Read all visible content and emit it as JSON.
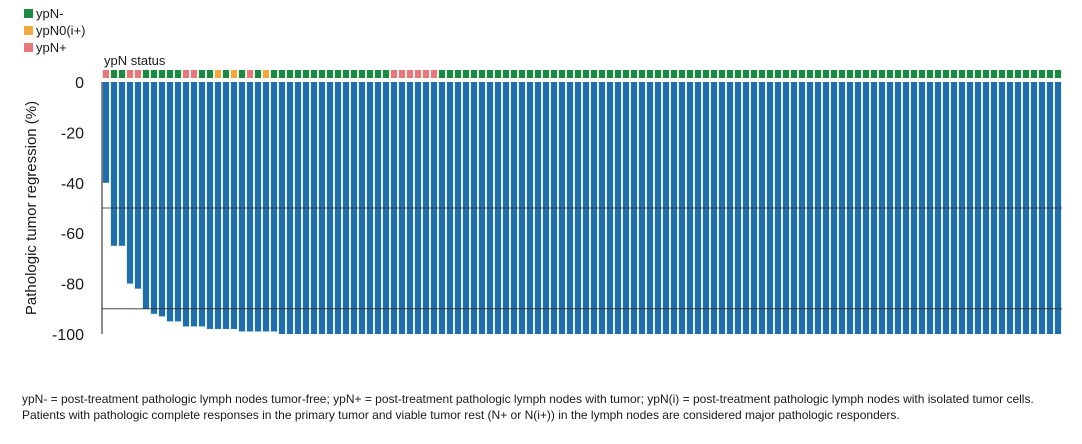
{
  "chart_data": {
    "type": "bar",
    "ylabel": "Pathologic tumor regression (%)",
    "ylim": [
      -100,
      0
    ],
    "yticks": [
      0,
      -20,
      -40,
      -60,
      -80,
      -100
    ],
    "reference_lines": [
      -50,
      -90
    ],
    "legend": {
      "placement": "top-left",
      "items": [
        {
          "label": "ypN-",
          "color": "#1a8a43"
        },
        {
          "label": "ypN0(i+)",
          "color": "#f2a93b"
        },
        {
          "label": "ypN+",
          "color": "#e8777a"
        }
      ]
    },
    "status_label": "ypN status",
    "bar_color": "#1f6fad",
    "values": [
      -40,
      -65,
      -65,
      -80,
      -82,
      -90,
      -92,
      -93,
      -95,
      -95,
      -97,
      -97,
      -97,
      -98,
      -98,
      -98,
      -98,
      -99,
      -99,
      -99,
      -99,
      -99,
      -100,
      -100,
      -100,
      -100,
      -100,
      -100,
      -100,
      -100,
      -100,
      -100,
      -100,
      -100,
      -100,
      -100,
      -100,
      -100,
      -100,
      -100,
      -100,
      -100,
      -100,
      -100,
      -100,
      -100,
      -100,
      -100,
      -100,
      -100,
      -100,
      -100,
      -100,
      -100,
      -100,
      -100,
      -100,
      -100,
      -100,
      -100,
      -100,
      -100,
      -100,
      -100,
      -100,
      -100,
      -100,
      -100,
      -100,
      -100,
      -100,
      -100,
      -100,
      -100,
      -100,
      -100,
      -100,
      -100,
      -100,
      -100,
      -100,
      -100,
      -100,
      -100,
      -100,
      -100,
      -100,
      -100,
      -100,
      -100,
      -100,
      -100,
      -100,
      -100,
      -100,
      -100,
      -100,
      -100,
      -100,
      -100,
      -100,
      -100,
      -100,
      -100,
      -100,
      -100,
      -100,
      -100,
      -100,
      -100,
      -100,
      -100,
      -100,
      -100,
      -100,
      -100,
      -100,
      -100,
      -100,
      -100
    ],
    "status": [
      "ypN+",
      "ypN-",
      "ypN-",
      "ypN+",
      "ypN+",
      "ypN-",
      "ypN-",
      "ypN-",
      "ypN-",
      "ypN-",
      "ypN+",
      "ypN+",
      "ypN-",
      "ypN-",
      "ypN0(i+)",
      "ypN-",
      "ypN0(i+)",
      "ypN-",
      "ypN+",
      "ypN-",
      "ypN0(i+)",
      "ypN-",
      "ypN-",
      "ypN-",
      "ypN-",
      "ypN-",
      "ypN-",
      "ypN-",
      "ypN-",
      "ypN-",
      "ypN-",
      "ypN-",
      "ypN-",
      "ypN-",
      "ypN-",
      "ypN-",
      "ypN+",
      "ypN+",
      "ypN+",
      "ypN+",
      "ypN+",
      "ypN+",
      "ypN-",
      "ypN-",
      "ypN-",
      "ypN-",
      "ypN-",
      "ypN-",
      "ypN-",
      "ypN-",
      "ypN-",
      "ypN-",
      "ypN-",
      "ypN-",
      "ypN-",
      "ypN-",
      "ypN-",
      "ypN-",
      "ypN-",
      "ypN-",
      "ypN-",
      "ypN-",
      "ypN-",
      "ypN-",
      "ypN-",
      "ypN-",
      "ypN-",
      "ypN-",
      "ypN-",
      "ypN-",
      "ypN-",
      "ypN-",
      "ypN-",
      "ypN-",
      "ypN-",
      "ypN-",
      "ypN-",
      "ypN-",
      "ypN-",
      "ypN-",
      "ypN-",
      "ypN-",
      "ypN-",
      "ypN-",
      "ypN-",
      "ypN-",
      "ypN-",
      "ypN-",
      "ypN-",
      "ypN-",
      "ypN-",
      "ypN-",
      "ypN-",
      "ypN-",
      "ypN-",
      "ypN-",
      "ypN-",
      "ypN-",
      "ypN-",
      "ypN-",
      "ypN-",
      "ypN-",
      "ypN-",
      "ypN-",
      "ypN-",
      "ypN-",
      "ypN-",
      "ypN-",
      "ypN-",
      "ypN-",
      "ypN-",
      "ypN-",
      "ypN-",
      "ypN-",
      "ypN-",
      "ypN-",
      "ypN-",
      "ypN-",
      "ypN-",
      "ypN-"
    ]
  },
  "footnote": "ypN- = post-treatment pathologic lymph nodes tumor-free; ypN+ = post-treatment pathologic lymph nodes with tumor; ypN(i) = post-treatment pathologic lymph nodes with isolated tumor cells. Patients with pathologic complete responses in the primary tumor and viable tumor rest (N+ or N(i+)) in the lymph nodes are considered major pathologic responders."
}
